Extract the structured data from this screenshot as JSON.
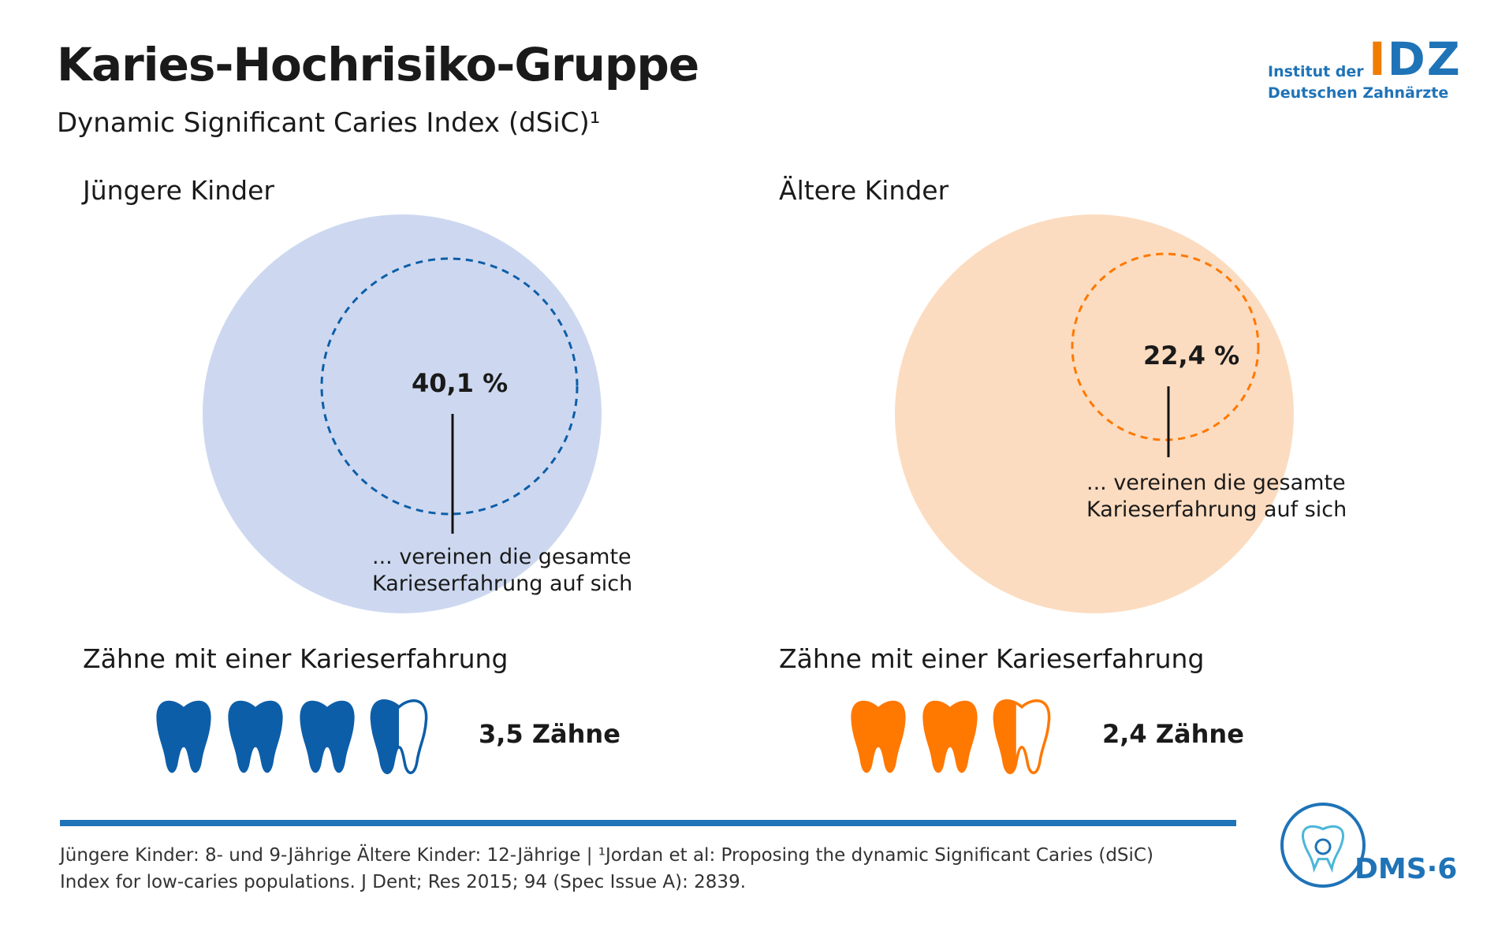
{
  "header": {
    "title": "Karies-Hochrisiko-Gruppe",
    "subtitle": "Dynamic Significant Caries Index (dSiC)¹"
  },
  "logo": {
    "line1": "Institut der",
    "line2": "Deutschen Zahnärzte",
    "mark_part1": "I",
    "mark_part2": "DZ"
  },
  "chart_data": [
    {
      "type": "bubble",
      "title": "Jüngere Kinder",
      "share_percent": 40.1,
      "share_label": "40,1 %",
      "caption": [
        "... vereinen die gesamte",
        "Karieserfahrung auf sich"
      ],
      "subheading": "Zähne mit einer Karieserfahrung",
      "teeth_value": 3.5,
      "teeth_label": "3,5 Zähne",
      "color": "#0d5ea8",
      "bg_color": "#cdd8f0"
    },
    {
      "type": "bubble",
      "title": "Ältere Kinder",
      "share_percent": 22.4,
      "share_label": "22,4 %",
      "caption": [
        "... vereinen die gesamte",
        "Karieserfahrung auf sich"
      ],
      "subheading": "Zähne mit einer Karieserfahrung",
      "teeth_value": 2.4,
      "teeth_label": "2,4 Zähne",
      "color": "#ff7800",
      "bg_color": "#fcdcc0"
    }
  ],
  "footer": {
    "line1": "Jüngere Kinder: 8- und 9-Jährige Ältere Kinder: 12-Jährige | ¹Jordan et al: Proposing the dynamic Significant Caries (dSiC)",
    "line2": "Index for low-caries populations. J Dent; Res 2015; 94 (Spec Issue A): 2839.",
    "badge": "DMS·6",
    "accent_color": "#1f73b7"
  }
}
